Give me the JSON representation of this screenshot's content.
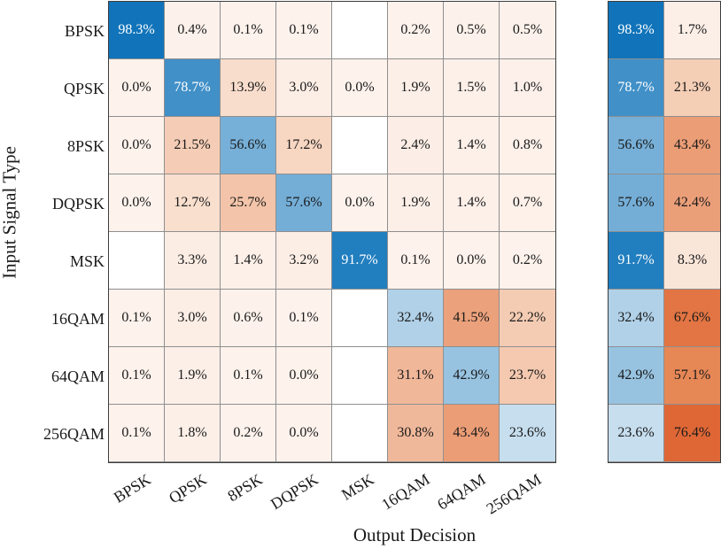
{
  "chart_data": {
    "type": "heatmap",
    "title": "",
    "xlabel": "Output Decision",
    "ylabel": "Input Signal Type",
    "value_suffix": "%",
    "categories": [
      "BPSK",
      "QPSK",
      "8PSK",
      "DQPSK",
      "MSK",
      "16QAM",
      "64QAM",
      "256QAM"
    ],
    "matrix_percent": [
      [
        98.3,
        0.4,
        0.1,
        0.1,
        null,
        0.2,
        0.5,
        0.5
      ],
      [
        0.0,
        78.7,
        13.9,
        3.0,
        0.0,
        1.9,
        1.5,
        1.0
      ],
      [
        0.0,
        21.5,
        56.6,
        17.2,
        null,
        2.4,
        1.4,
        0.8
      ],
      [
        0.0,
        12.7,
        25.7,
        57.6,
        0.0,
        1.9,
        1.4,
        0.7
      ],
      [
        null,
        3.3,
        1.4,
        3.2,
        91.7,
        0.1,
        0.0,
        0.2
      ],
      [
        0.1,
        3.0,
        0.6,
        0.1,
        null,
        32.4,
        41.5,
        22.2
      ],
      [
        0.1,
        1.9,
        0.1,
        0.0,
        null,
        31.1,
        42.9,
        23.7
      ],
      [
        0.1,
        1.8,
        0.2,
        0.0,
        null,
        30.8,
        43.4,
        23.6
      ]
    ],
    "summary_percent": [
      {
        "correct": 98.3,
        "incorrect": 1.7
      },
      {
        "correct": 78.7,
        "incorrect": 21.3
      },
      {
        "correct": 56.6,
        "incorrect": 43.4
      },
      {
        "correct": 57.6,
        "incorrect": 42.4
      },
      {
        "correct": 91.7,
        "incorrect": 8.3
      },
      {
        "correct": 32.4,
        "incorrect": 67.6
      },
      {
        "correct": 42.9,
        "incorrect": 57.1
      },
      {
        "correct": 23.6,
        "incorrect": 76.4
      }
    ],
    "colors": {
      "correct_blue_max": "#0d72b9",
      "blank_cell": "#ffffff",
      "white_text": "#ffffff",
      "black_text": "#1a1a1a",
      "incorrect_red_stops": [
        {
          "t": 0.0,
          "hex": "#fdf2ec"
        },
        {
          "t": 0.15,
          "hex": "#f8dbc9"
        },
        {
          "t": 0.25,
          "hex": "#f3c6ab"
        },
        {
          "t": 0.35,
          "hex": "#eeae8d"
        },
        {
          "t": 0.45,
          "hex": "#ea9a72"
        },
        {
          "t": 0.6,
          "hex": "#e5824f"
        },
        {
          "t": 0.8,
          "hex": "#de6130"
        },
        {
          "t": 1.0,
          "hex": "#d64d1e"
        }
      ]
    },
    "layout": {
      "grid_lines": "on",
      "x_tick_rotation_deg": -32,
      "summary_block_separated": true
    }
  }
}
